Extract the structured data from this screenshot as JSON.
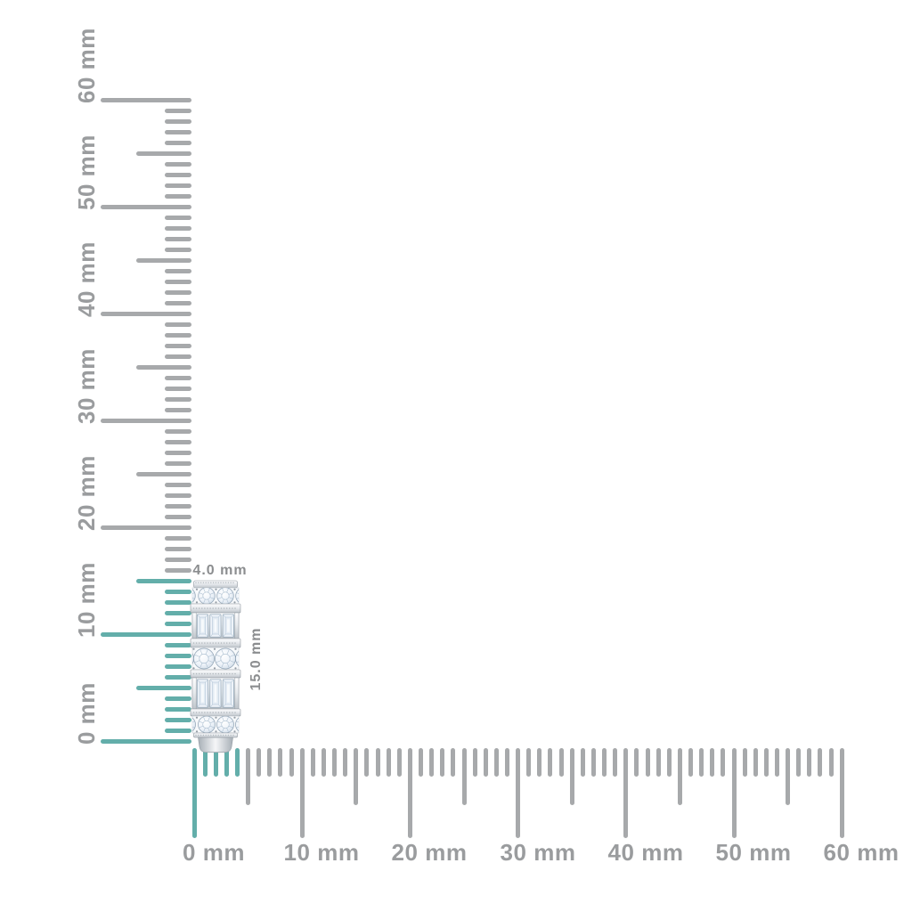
{
  "diagram": {
    "type": "product-dimension-diagram",
    "unit": "mm"
  },
  "rulers": {
    "vertical": {
      "range_mm": [
        0,
        60
      ],
      "minor_step_mm": 1,
      "mid_step_mm": 5,
      "major_step_mm": 10,
      "labels": [
        "0 mm",
        "10 mm",
        "20 mm",
        "30 mm",
        "40 mm",
        "50 mm",
        "60 mm"
      ],
      "label_values_mm": [
        0,
        10,
        20,
        30,
        40,
        50,
        60
      ],
      "highlight_range_mm": [
        0,
        15
      ]
    },
    "horizontal": {
      "range_mm": [
        0,
        60
      ],
      "minor_step_mm": 1,
      "mid_step_mm": 5,
      "major_step_mm": 10,
      "labels": [
        "0 mm",
        "10 mm",
        "20 mm",
        "30 mm",
        "40 mm",
        "50 mm",
        "60 mm"
      ],
      "label_values_mm": [
        0,
        10,
        20,
        30,
        40,
        50,
        60
      ],
      "highlight_range_mm": [
        0,
        4
      ]
    }
  },
  "object": {
    "width_label": "4.0 mm",
    "height_label": "15.0 mm",
    "width_mm": 4.0,
    "height_mm": 15.0
  },
  "colors": {
    "tick": "#a7a9ab",
    "ruler_label": "#9a9c9e",
    "highlight": "#63aeaa",
    "annotation": "#8b8d8f",
    "background": "#ffffff"
  }
}
